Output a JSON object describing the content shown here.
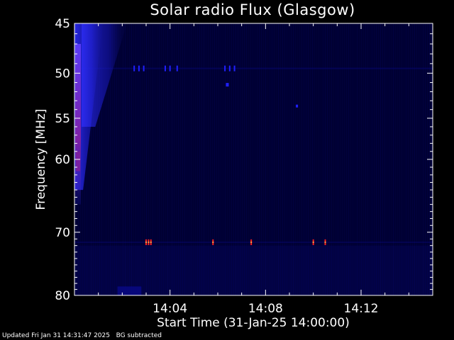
{
  "chart_data": {
    "type": "heatmap",
    "title": "Solar radio Flux (Glasgow)",
    "xlabel": "Start Time (31-Jan-25 14:00:00)",
    "ylabel": "Frequency [MHz]",
    "x_unit": "minutes after 14:00:00",
    "xlim": [
      0,
      15
    ],
    "ylim": [
      45,
      80
    ],
    "y_scale": "log",
    "x_ticks": [
      {
        "label": "14:04",
        "minute": 4
      },
      {
        "label": "14:08",
        "minute": 8
      },
      {
        "label": "14:12",
        "minute": 12
      }
    ],
    "y_ticks": [
      {
        "label": "45",
        "value": 45
      },
      {
        "label": "50",
        "value": 50
      },
      {
        "label": "55",
        "value": 55
      },
      {
        "label": "60",
        "value": 60
      },
      {
        "label": "70",
        "value": 70
      },
      {
        "label": "80",
        "value": 80
      }
    ],
    "colormap": [
      "#000000",
      "#000033",
      "#0a0a90",
      "#2020ff",
      "#8020a0",
      "#ff2020",
      "#ffa040"
    ],
    "bursts": [
      {
        "minute_start": 0.0,
        "minute_end": 1.2,
        "freq_low": 64,
        "freq_high": 45,
        "intensity": 0.6
      },
      {
        "minute_start": 0.3,
        "minute_end": 2.2,
        "freq_low": 56,
        "freq_high": 45,
        "intensity": 0.45
      }
    ],
    "spikes": [
      {
        "minute": 2.5,
        "freq": 49.5
      },
      {
        "minute": 2.7,
        "freq": 49.5
      },
      {
        "minute": 2.9,
        "freq": 49.5
      },
      {
        "minute": 3.8,
        "freq": 49.5
      },
      {
        "minute": 4.0,
        "freq": 49.5
      },
      {
        "minute": 4.3,
        "freq": 49.5
      },
      {
        "minute": 6.3,
        "freq": 49.5
      },
      {
        "minute": 6.5,
        "freq": 49.5
      },
      {
        "minute": 6.7,
        "freq": 49.5
      },
      {
        "minute": 3.0,
        "freq": 71.5
      },
      {
        "minute": 3.1,
        "freq": 71.5
      },
      {
        "minute": 3.2,
        "freq": 71.5
      },
      {
        "minute": 5.8,
        "freq": 71.5
      },
      {
        "minute": 7.4,
        "freq": 71.5
      },
      {
        "minute": 10.0,
        "freq": 71.5
      },
      {
        "minute": 10.5,
        "freq": 71.5
      }
    ]
  },
  "footer": {
    "updated": "Updated Fri Jan 31 14:31:47 2025",
    "bg": "BG subtracted"
  }
}
